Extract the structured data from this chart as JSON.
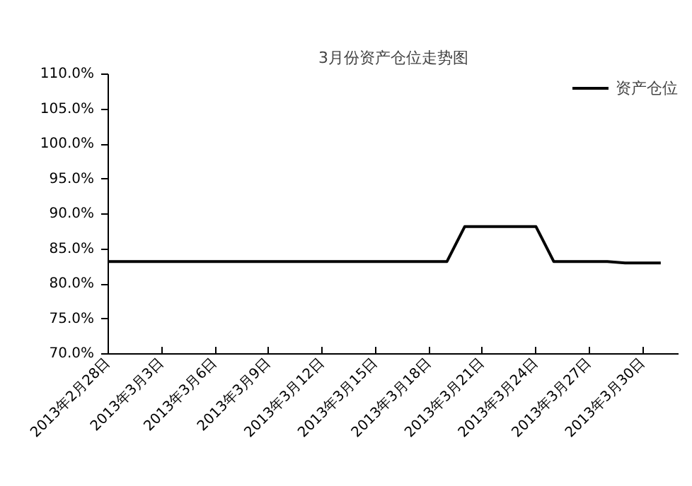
{
  "chart_data": {
    "type": "line",
    "title": "3月份资产仓位走势图",
    "legend": "top right",
    "grid": false,
    "marker": "none",
    "line_style": "solid",
    "x": [
      "2013-02-28",
      "2013-03-19",
      "2013-03-20",
      "2013-03-24",
      "2013-03-25",
      "2013-03-28",
      "2013-03-29",
      "2013-03-31"
    ],
    "series": [
      {
        "name": "资产仓位",
        "color": "#000000",
        "values": [
          83.2,
          83.2,
          88.2,
          88.2,
          83.2,
          83.2,
          83.0,
          83.0
        ]
      }
    ],
    "xlim": [
      "2013-02-28",
      "2013-04-01"
    ],
    "xticks": [
      {
        "value": "2013-02-28",
        "label": "2013年2月28日"
      },
      {
        "value": "2013-03-03",
        "label": "2013年3月3日"
      },
      {
        "value": "2013-03-06",
        "label": "2013年3月6日"
      },
      {
        "value": "2013-03-09",
        "label": "2013年3月9日"
      },
      {
        "value": "2013-03-12",
        "label": "2013年3月12日"
      },
      {
        "value": "2013-03-15",
        "label": "2013年3月15日"
      },
      {
        "value": "2013-03-18",
        "label": "2013年3月18日"
      },
      {
        "value": "2013-03-21",
        "label": "2013年3月21日"
      },
      {
        "value": "2013-03-24",
        "label": "2013年3月24日"
      },
      {
        "value": "2013-03-27",
        "label": "2013年3月27日"
      },
      {
        "value": "2013-03-30",
        "label": "2013年3月30日"
      }
    ],
    "ylim": [
      70,
      110
    ],
    "yticks": [
      {
        "value": 70,
        "label": "70.0%"
      },
      {
        "value": 75,
        "label": "75.0%"
      },
      {
        "value": 80,
        "label": "80.0%"
      },
      {
        "value": 85,
        "label": "85.0%"
      },
      {
        "value": 90,
        "label": "90.0%"
      },
      {
        "value": 95,
        "label": "95.0%"
      },
      {
        "value": 100,
        "label": "100.0%"
      },
      {
        "value": 105,
        "label": "105.0%"
      },
      {
        "value": 110,
        "label": "110.0%"
      }
    ]
  }
}
